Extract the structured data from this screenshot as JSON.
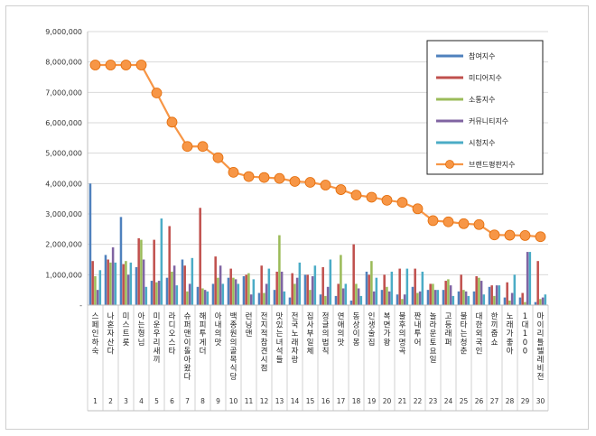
{
  "chart_data": {
    "type": "bar",
    "title": "",
    "xlabel": "",
    "ylabel": "",
    "ylim": [
      0,
      9000000
    ],
    "ytick_values": [
      0,
      1000000,
      2000000,
      3000000,
      4000000,
      5000000,
      6000000,
      7000000,
      8000000,
      9000000
    ],
    "ytick_labels": [
      "-",
      "1,000,000",
      "2,000,000",
      "3,000,000",
      "4,000,000",
      "5,000,000",
      "6,000,000",
      "7,000,000",
      "8,000,000",
      "9,000,000"
    ],
    "grid": true,
    "legend_position": "top-right",
    "index_labels": [
      "1",
      "2",
      "3",
      "4",
      "5",
      "6",
      "7",
      "8",
      "9",
      "10",
      "11",
      "12",
      "13",
      "14",
      "15",
      "16",
      "17",
      "18",
      "19",
      "20",
      "21",
      "22",
      "23",
      "24",
      "25",
      "26",
      "27",
      "28",
      "29",
      "30"
    ],
    "categories": [
      "스페인하숙",
      "나혼자산다",
      "미스트롯",
      "아는형님",
      "미운우리새끼",
      "라디오스타",
      "슈퍼맨이돌아왔다",
      "해피투게더",
      "아내의맛",
      "백종원의골목식당",
      "런닝맨",
      "전지적참견시점",
      "맛있는녀석들",
      "전국노래자랑",
      "집사부일체",
      "정글의법칙",
      "연애의맛",
      "동상이몽",
      "인생술집",
      "복면가왕",
      "불후의명곡",
      "짠내투어",
      "놀라운토요일",
      "고등래퍼",
      "불타는청춘",
      "대한외국인",
      "한끼줍쇼",
      "노래가좋아",
      "1대100",
      "마이리틀텔레비전"
    ],
    "series": [
      {
        "name": "참여지수",
        "color": "#4F81BD",
        "kind": "bar",
        "values": [
          4000000,
          1650000,
          2900000,
          1250000,
          800000,
          900000,
          1500000,
          600000,
          700000,
          900000,
          950000,
          400000,
          500000,
          250000,
          1000000,
          350000,
          300000,
          150000,
          1100000,
          500000,
          350000,
          600000,
          500000,
          500000,
          450000,
          450000,
          600000,
          250000,
          250000,
          100000
        ]
      },
      {
        "name": "미디어지수",
        "color": "#C0504D",
        "kind": "bar",
        "values": [
          1450000,
          1500000,
          1350000,
          2200000,
          2150000,
          2600000,
          1300000,
          3200000,
          1600000,
          1200000,
          1000000,
          1300000,
          1100000,
          1050000,
          1000000,
          1250000,
          700000,
          2000000,
          1000000,
          1000000,
          1200000,
          1200000,
          700000,
          800000,
          1000000,
          950000,
          650000,
          750000,
          400000,
          1450000
        ]
      },
      {
        "name": "소통지수",
        "color": "#9BBB59",
        "kind": "bar",
        "values": [
          950000,
          1400000,
          1450000,
          2150000,
          750000,
          1100000,
          450000,
          550000,
          900000,
          900000,
          1050000,
          400000,
          2300000,
          700000,
          500000,
          300000,
          1650000,
          700000,
          1450000,
          600000,
          200000,
          400000,
          700000,
          850000,
          500000,
          900000,
          300000,
          150000,
          100000,
          200000
        ]
      },
      {
        "name": "커뮤니티지수",
        "color": "#8064A2",
        "kind": "bar",
        "values": [
          500000,
          1900000,
          1000000,
          1500000,
          800000,
          1300000,
          700000,
          500000,
          1300000,
          850000,
          350000,
          700000,
          1100000,
          900000,
          950000,
          600000,
          550000,
          550000,
          450000,
          450000,
          350000,
          450000,
          500000,
          650000,
          450000,
          800000,
          650000,
          400000,
          1750000,
          250000
        ]
      },
      {
        "name": "시청지수",
        "color": "#4BACC6",
        "kind": "bar",
        "values": [
          1150000,
          1400000,
          1400000,
          600000,
          2850000,
          650000,
          1550000,
          450000,
          700000,
          700000,
          850000,
          1200000,
          450000,
          1400000,
          1300000,
          1500000,
          700000,
          300000,
          900000,
          1100000,
          1200000,
          1100000,
          500000,
          300000,
          300000,
          350000,
          650000,
          1000000,
          1750000,
          350000
        ]
      },
      {
        "name": "브랜드평판지수",
        "color": "#F79646",
        "kind": "line",
        "values": [
          7900000,
          7900000,
          7900000,
          7900000,
          6980000,
          6020000,
          5220000,
          5220000,
          4850000,
          4370000,
          4230000,
          4200000,
          4170000,
          4070000,
          4040000,
          3950000,
          3800000,
          3620000,
          3550000,
          3450000,
          3380000,
          3170000,
          2780000,
          2740000,
          2680000,
          2650000,
          2310000,
          2300000,
          2290000,
          2250000
        ]
      }
    ]
  }
}
